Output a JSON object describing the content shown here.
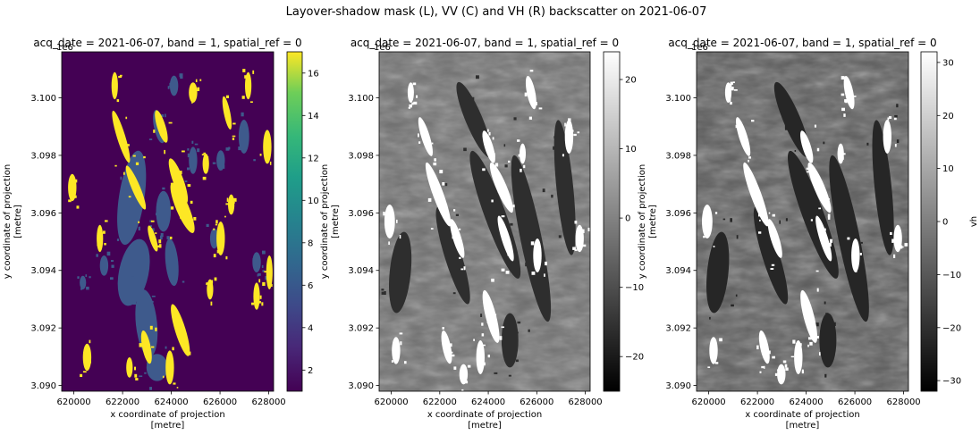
{
  "figure": {
    "suptitle": "Layover-shadow mask (L), VV (C) and VH (R) backscatter on 2021-06-07"
  },
  "chart_data": [
    {
      "type": "heatmap",
      "title": "acq_date = 2021-06-07, band = 1, spatial_ref = 0",
      "xlabel": "x coordinate of projection\n[metre]",
      "ylabel": "y coordinate of projection\n[metre]",
      "x_offset_label": "1e6",
      "xlim": [
        619500,
        628200
      ],
      "ylim": [
        3089800,
        3101600
      ],
      "xticks": [
        620000,
        622000,
        624000,
        626000,
        628000
      ],
      "xtick_labels": [
        "620000",
        "622000",
        "624000",
        "626000",
        "628000"
      ],
      "yticks": [
        3090000,
        3092000,
        3094000,
        3096000,
        3098000,
        3100000
      ],
      "ytick_labels": [
        "3.090",
        "3.092",
        "3.094",
        "3.096",
        "3.098",
        "3.100"
      ],
      "colormap": "viridis",
      "colorbar": {
        "label": "",
        "range": [
          1,
          17
        ],
        "ticks": [
          2,
          4,
          6,
          8,
          10,
          12,
          14,
          16
        ],
        "tick_labels": [
          "2",
          "4",
          "6",
          "8",
          "10",
          "12",
          "14",
          "16"
        ]
      },
      "background_value": 1,
      "layover_value": 5,
      "shadow_value": 17
    },
    {
      "type": "heatmap",
      "title": "acq_date = 2021-06-07, band = 1, spatial_ref = 0",
      "xlabel": "x coordinate of projection\n[metre]",
      "ylabel": "y coordinate of projection\n[metre]",
      "x_offset_label": "1e6",
      "xlim": [
        619500,
        628200
      ],
      "ylim": [
        3089800,
        3101600
      ],
      "xticks": [
        620000,
        622000,
        624000,
        626000,
        628000
      ],
      "xtick_labels": [
        "620000",
        "622000",
        "624000",
        "626000",
        "628000"
      ],
      "yticks": [
        3090000,
        3092000,
        3094000,
        3096000,
        3098000,
        3100000
      ],
      "ytick_labels": [
        "3.090",
        "3.092",
        "3.094",
        "3.096",
        "3.098",
        "3.100"
      ],
      "colormap": "gray",
      "colorbar": {
        "label": "",
        "range": [
          -25,
          24
        ],
        "ticks": [
          -20,
          -10,
          0,
          10,
          20
        ],
        "tick_labels": [
          "−20",
          "−10",
          "0",
          "10",
          "20"
        ]
      }
    },
    {
      "type": "heatmap",
      "title": "acq_date = 2021-06-07, band = 1, spatial_ref = 0",
      "xlabel": "x coordinate of projection\n[metre]",
      "ylabel": "y coordinate of projection\n[metre]",
      "x_offset_label": "1e6",
      "xlim": [
        619500,
        628200
      ],
      "ylim": [
        3089800,
        3101600
      ],
      "xticks": [
        620000,
        622000,
        624000,
        626000,
        628000
      ],
      "xtick_labels": [
        "620000",
        "622000",
        "624000",
        "626000",
        "628000"
      ],
      "yticks": [
        3090000,
        3092000,
        3094000,
        3096000,
        3098000,
        3100000
      ],
      "ytick_labels": [
        "3.090",
        "3.092",
        "3.094",
        "3.096",
        "3.098",
        "3.100"
      ],
      "colormap": "gray",
      "colorbar": {
        "label": "vh",
        "range": [
          -32,
          32
        ],
        "ticks": [
          -30,
          -20,
          -10,
          0,
          10,
          20,
          30
        ],
        "tick_labels": [
          "−30",
          "−20",
          "−10",
          "0",
          "10",
          "20",
          "30"
        ]
      }
    }
  ]
}
